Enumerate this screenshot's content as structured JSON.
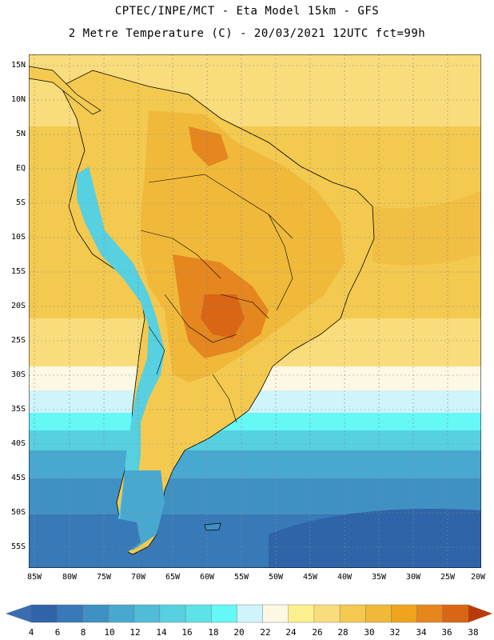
{
  "header": {
    "line1": "CPTEC/INPE/MCT -  Eta Model 15km - GFS",
    "line2": "2 Metre Temperature (C) - 20/03/2021 12UTC fct=99h"
  },
  "axes": {
    "lat_labels": [
      "15N",
      "10N",
      "5N",
      "EQ",
      "5S",
      "10S",
      "15S",
      "20S",
      "25S",
      "30S",
      "35S",
      "40S",
      "45S",
      "50S",
      "55S"
    ],
    "lon_labels": [
      "85W",
      "80W",
      "75W",
      "70W",
      "65W",
      "60W",
      "55W",
      "50W",
      "45W",
      "40W",
      "35W",
      "30W",
      "25W",
      "20W"
    ]
  },
  "colorbar": {
    "labels": [
      "4",
      "6",
      "8",
      "10",
      "12",
      "14",
      "16",
      "18",
      "20",
      "22",
      "24",
      "26",
      "28",
      "30",
      "32",
      "34",
      "36",
      "38"
    ],
    "below_color": "#3a6cb0",
    "above_color": "#b83c0a",
    "colors": [
      "#2f64a8",
      "#3879b8",
      "#3f91c4",
      "#49a8cf",
      "#50bcd8",
      "#57d0e0",
      "#5de2e8",
      "#66f7f7",
      "#cff4fb",
      "#fdf8e4",
      "#fcf08f",
      "#f9dd7c",
      "#f3c950",
      "#f0b93a",
      "#f0a41e",
      "#e5861e",
      "#d96614",
      "#c84b08"
    ]
  },
  "legend": {
    "ocean_warm": "#f3c950",
    "ocean_mid": "#f9dd7c",
    "land_hot": "#e5861e",
    "land_very_hot": "#d96614",
    "andes_cold": "#57d0e0",
    "south_ocean": "#3879b8"
  }
}
